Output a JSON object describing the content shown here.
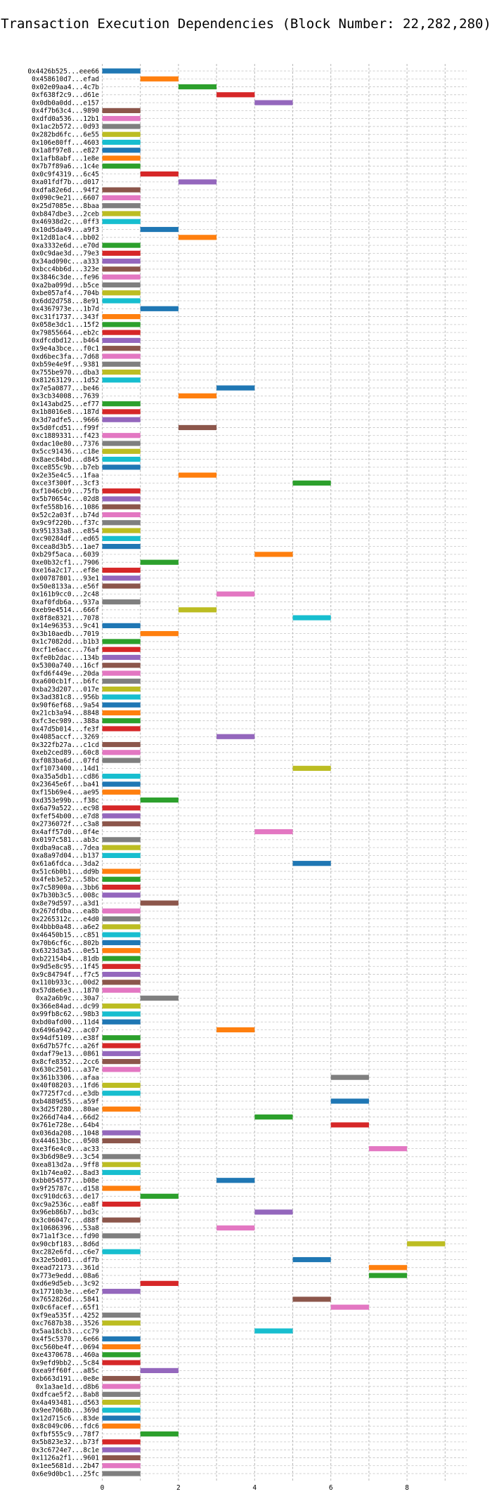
{
  "chart_data": {
    "type": "bar",
    "orientation": "horizontal-gantt",
    "title": "Transaction Execution Dependencies (Block Number: 22,282,280)",
    "xlabel": "",
    "ylabel": "",
    "xlim": [
      0,
      9.5
    ],
    "x_ticks": [
      0,
      2,
      4,
      6,
      8
    ],
    "grid": true,
    "palette": [
      "#1f77b4",
      "#ff7f0e",
      "#2ca02c",
      "#d62728",
      "#9467bd",
      "#8c564b",
      "#e377c2",
      "#7f7f7f",
      "#bcbd22",
      "#17becf"
    ],
    "transactions": [
      {
        "label": "0x4426b525...eee66",
        "start": 0,
        "end": 1
      },
      {
        "label": "0x458610d7...efad",
        "start": 1,
        "end": 2
      },
      {
        "label": "0x02e09aa4...4c7b",
        "start": 2,
        "end": 3
      },
      {
        "label": "0xf638f2c9...d61e",
        "start": 3,
        "end": 4
      },
      {
        "label": "0x0db0a0dd...e157",
        "start": 4,
        "end": 5
      },
      {
        "label": "0x4f7b63c4...9890",
        "start": 0,
        "end": 1
      },
      {
        "label": "0xdfd0a536...12b1",
        "start": 0,
        "end": 1
      },
      {
        "label": "0x1ac2b572...0d93",
        "start": 0,
        "end": 1
      },
      {
        "label": "0x282bd6fc...6e55",
        "start": 0,
        "end": 1
      },
      {
        "label": "0x106e80ff...4603",
        "start": 0,
        "end": 1
      },
      {
        "label": "0x1a8f97e8...e827",
        "start": 0,
        "end": 1
      },
      {
        "label": "0x1afb8abf...1e8e",
        "start": 0,
        "end": 1
      },
      {
        "label": "0x7b7f89a6...1c4e",
        "start": 0,
        "end": 1
      },
      {
        "label": "0x0c9f4319...6c45",
        "start": 1,
        "end": 2
      },
      {
        "label": "0xa01fdf7b...d017",
        "start": 2,
        "end": 3
      },
      {
        "label": "0xdfa82e6d...94f2",
        "start": 0,
        "end": 1
      },
      {
        "label": "0x090c9e21...6607",
        "start": 0,
        "end": 1
      },
      {
        "label": "0x25d7085e...8baa",
        "start": 0,
        "end": 1
      },
      {
        "label": "0xb847dbe3...2ceb",
        "start": 0,
        "end": 1
      },
      {
        "label": "0x46938d2c...0ff3",
        "start": 0,
        "end": 1
      },
      {
        "label": "0x10d5da49...a9f3",
        "start": 1,
        "end": 2
      },
      {
        "label": "0x12d81ac4...bb02",
        "start": 2,
        "end": 3
      },
      {
        "label": "0xa3332e6d...e70d",
        "start": 0,
        "end": 1
      },
      {
        "label": "0x0c9dae3d...79e3",
        "start": 0,
        "end": 1
      },
      {
        "label": "0x34ad090c...a333",
        "start": 0,
        "end": 1
      },
      {
        "label": "0xbcc4bb6d...323e",
        "start": 0,
        "end": 1
      },
      {
        "label": "0x3846c3de...fe96",
        "start": 0,
        "end": 1
      },
      {
        "label": "0xa2ba099d...b5ce",
        "start": 0,
        "end": 1
      },
      {
        "label": "0xbe057af4...704b",
        "start": 0,
        "end": 1
      },
      {
        "label": "0x6dd2d758...8e91",
        "start": 0,
        "end": 1
      },
      {
        "label": "0x4367973e...1b7d",
        "start": 1,
        "end": 2
      },
      {
        "label": "0xc31f1737...343f",
        "start": 0,
        "end": 1
      },
      {
        "label": "0x058e3dc1...15f2",
        "start": 0,
        "end": 1
      },
      {
        "label": "0x79855664...eb2c",
        "start": 0,
        "end": 1
      },
      {
        "label": "0xdfcdbd12...b464",
        "start": 0,
        "end": 1
      },
      {
        "label": "0x9e4a3bce...f0c1",
        "start": 0,
        "end": 1
      },
      {
        "label": "0xd6bec3fa...7d68",
        "start": 0,
        "end": 1
      },
      {
        "label": "0xb59e4e9f...9381",
        "start": 0,
        "end": 1
      },
      {
        "label": "0x755be970...dba3",
        "start": 0,
        "end": 1
      },
      {
        "label": "0x81263129...1d52",
        "start": 0,
        "end": 1
      },
      {
        "label": "0x7e5a0877...be46",
        "start": 3,
        "end": 4
      },
      {
        "label": "0x3cb34008...7639",
        "start": 2,
        "end": 3
      },
      {
        "label": "0x143abd25...ef77",
        "start": 0,
        "end": 1
      },
      {
        "label": "0x1b8016e8...187d",
        "start": 0,
        "end": 1
      },
      {
        "label": "0x3d7adfe5...9666",
        "start": 0,
        "end": 1
      },
      {
        "label": "0x5d0fcd51...f99f",
        "start": 2,
        "end": 3
      },
      {
        "label": "0xc1889331...f423",
        "start": 0,
        "end": 1
      },
      {
        "label": "0xdac10e80...7376",
        "start": 0,
        "end": 1
      },
      {
        "label": "0x5cc91436...c18e",
        "start": 0,
        "end": 1
      },
      {
        "label": "0x8aec84bd...d845",
        "start": 0,
        "end": 1
      },
      {
        "label": "0xce855c9b...b7eb",
        "start": 0,
        "end": 1
      },
      {
        "label": "0x2e35e4c5...1faa",
        "start": 2,
        "end": 3
      },
      {
        "label": "0xce3f300f...3cf3",
        "start": 5,
        "end": 6
      },
      {
        "label": "0xf1046cb9...75fb",
        "start": 0,
        "end": 1
      },
      {
        "label": "0x5b70654c...02d8",
        "start": 0,
        "end": 1
      },
      {
        "label": "0xfe558b16...1086",
        "start": 0,
        "end": 1
      },
      {
        "label": "0x52c2a03f...b74d",
        "start": 0,
        "end": 1
      },
      {
        "label": "0x9c9f220b...f37c",
        "start": 0,
        "end": 1
      },
      {
        "label": "0x951333a8...e854",
        "start": 0,
        "end": 1
      },
      {
        "label": "0xc90284df...ed65",
        "start": 0,
        "end": 1
      },
      {
        "label": "0xcea8d3b5...1ae7",
        "start": 0,
        "end": 1
      },
      {
        "label": "0xb29f5aca...6039",
        "start": 4,
        "end": 5
      },
      {
        "label": "0xe0b32cf1...7906",
        "start": 1,
        "end": 2
      },
      {
        "label": "0xe16a2c17...ef8e",
        "start": 0,
        "end": 1
      },
      {
        "label": "0x00787801...93e1",
        "start": 0,
        "end": 1
      },
      {
        "label": "0x50e8133a...e56f",
        "start": 0,
        "end": 1
      },
      {
        "label": "0x161b9cc0...2c48",
        "start": 3,
        "end": 4
      },
      {
        "label": "0xaf0fdb6a...937a",
        "start": 0,
        "end": 1
      },
      {
        "label": "0xeb9e4514...666f",
        "start": 2,
        "end": 3
      },
      {
        "label": "0x8f8e8321...7078",
        "start": 5,
        "end": 6
      },
      {
        "label": "0x14e96353...9c41",
        "start": 0,
        "end": 1
      },
      {
        "label": "0x3b10aedb...7019",
        "start": 1,
        "end": 2
      },
      {
        "label": "0x1c7082dd...b1b3",
        "start": 0,
        "end": 1
      },
      {
        "label": "0xcf1e6acc...76af",
        "start": 0,
        "end": 1
      },
      {
        "label": "0xfe0b2dac...134b",
        "start": 0,
        "end": 1
      },
      {
        "label": "0x5300a740...16cf",
        "start": 0,
        "end": 1
      },
      {
        "label": "0xfd6f449e...20da",
        "start": 0,
        "end": 1
      },
      {
        "label": "0xa600cb1f...b6fc",
        "start": 0,
        "end": 1
      },
      {
        "label": "0xba23d207...017e",
        "start": 0,
        "end": 1
      },
      {
        "label": "0x3ad381c8...956b",
        "start": 0,
        "end": 1
      },
      {
        "label": "0x90f6ef68...9a54",
        "start": 0,
        "end": 1
      },
      {
        "label": "0x21cb3a94...8848",
        "start": 0,
        "end": 1
      },
      {
        "label": "0xfc3ec989...388a",
        "start": 0,
        "end": 1
      },
      {
        "label": "0x47d5b014...fe3f",
        "start": 0,
        "end": 1
      },
      {
        "label": "0x4085accf...3269",
        "start": 3,
        "end": 4
      },
      {
        "label": "0x322fb27a...c1cd",
        "start": 0,
        "end": 1
      },
      {
        "label": "0xeb2ced89...60c8",
        "start": 0,
        "end": 1
      },
      {
        "label": "0xf083ba6d...07fd",
        "start": 0,
        "end": 1
      },
      {
        "label": "0xf1073400...14d1",
        "start": 5,
        "end": 6
      },
      {
        "label": "0xa35a5db1...cd86",
        "start": 0,
        "end": 1
      },
      {
        "label": "0x23645e6f...ba41",
        "start": 0,
        "end": 1
      },
      {
        "label": "0xf15b69e4...ae95",
        "start": 0,
        "end": 1
      },
      {
        "label": "0xd353e99b...f38c",
        "start": 1,
        "end": 2
      },
      {
        "label": "0x6a79a522...ec98",
        "start": 0,
        "end": 1
      },
      {
        "label": "0xfef54b00...e7d8",
        "start": 0,
        "end": 1
      },
      {
        "label": "0x2736072f...c3a8",
        "start": 0,
        "end": 1
      },
      {
        "label": "0x4aff57d0...0f4e",
        "start": 4,
        "end": 5
      },
      {
        "label": "0x0197c581...ab3c",
        "start": 0,
        "end": 1
      },
      {
        "label": "0xdba9aca8...7dea",
        "start": 0,
        "end": 1
      },
      {
        "label": "0xa8a97d04...b137",
        "start": 0,
        "end": 1
      },
      {
        "label": "0x61a6fdca...3da2",
        "start": 5,
        "end": 6
      },
      {
        "label": "0x51c6b0b1...dd9b",
        "start": 0,
        "end": 1
      },
      {
        "label": "0x4feb3e52...58bc",
        "start": 0,
        "end": 1
      },
      {
        "label": "0x7c58900a...3bb6",
        "start": 0,
        "end": 1
      },
      {
        "label": "0x7b30b3c5...008c",
        "start": 0,
        "end": 1
      },
      {
        "label": "0x8e79d597...a3d1",
        "start": 1,
        "end": 2
      },
      {
        "label": "0x267dfdba...ea8b",
        "start": 0,
        "end": 1
      },
      {
        "label": "0x2265312c...e4d0",
        "start": 0,
        "end": 1
      },
      {
        "label": "0x4bbb0a48...a6e2",
        "start": 0,
        "end": 1
      },
      {
        "label": "0x46450b15...c851",
        "start": 0,
        "end": 1
      },
      {
        "label": "0x70b6cf6c...802b",
        "start": 0,
        "end": 1
      },
      {
        "label": "0x6323d3a5...0e51",
        "start": 0,
        "end": 1
      },
      {
        "label": "0xb22154b4...81db",
        "start": 0,
        "end": 1
      },
      {
        "label": "0x9d5e8c95...1f45",
        "start": 0,
        "end": 1
      },
      {
        "label": "0x9c84794f...f7c5",
        "start": 0,
        "end": 1
      },
      {
        "label": "0x110b933c...00d2",
        "start": 0,
        "end": 1
      },
      {
        "label": "0x57d8e6e3...1870",
        "start": 0,
        "end": 1
      },
      {
        "label": "0xa2a6b9c...30a7",
        "start": 1,
        "end": 2
      },
      {
        "label": "0x366e84ad...dc99",
        "start": 0,
        "end": 1
      },
      {
        "label": "0x99fb8c62...98b3",
        "start": 0,
        "end": 1
      },
      {
        "label": "0xbd0afd00...11d4",
        "start": 0,
        "end": 1
      },
      {
        "label": "0x6496a942...ac07",
        "start": 3,
        "end": 4
      },
      {
        "label": "0x94df5109...e38f",
        "start": 0,
        "end": 1
      },
      {
        "label": "0x6d7b57fc...a26f",
        "start": 0,
        "end": 1
      },
      {
        "label": "0xdaf79e13...0861",
        "start": 0,
        "end": 1
      },
      {
        "label": "0x8cfe8352...2cc6",
        "start": 0,
        "end": 1
      },
      {
        "label": "0x630c2501...a37e",
        "start": 0,
        "end": 1
      },
      {
        "label": "0x361b3306...afaa",
        "start": 6,
        "end": 7
      },
      {
        "label": "0x40f08203...1fd6",
        "start": 0,
        "end": 1
      },
      {
        "label": "0x7725f7cd...e3db",
        "start": 0,
        "end": 1
      },
      {
        "label": "0xb4889d55...a59f",
        "start": 6,
        "end": 7
      },
      {
        "label": "0x3d25f280...80ae",
        "start": 0,
        "end": 1
      },
      {
        "label": "0x266d74a4...66d2",
        "start": 4,
        "end": 5
      },
      {
        "label": "0x761e728e...64b4",
        "start": 6,
        "end": 7
      },
      {
        "label": "0x036da208...1048",
        "start": 0,
        "end": 1
      },
      {
        "label": "0x444613bc...0508",
        "start": 0,
        "end": 1
      },
      {
        "label": "0xe3f6e4c0...ac33",
        "start": 7,
        "end": 8
      },
      {
        "label": "0x3b6d98e9...3c54",
        "start": 0,
        "end": 1
      },
      {
        "label": "0xea813d2a...9ff8",
        "start": 0,
        "end": 1
      },
      {
        "label": "0x1b74ea02...8ad3",
        "start": 0,
        "end": 1
      },
      {
        "label": "0xbb054577...b08e",
        "start": 3,
        "end": 4
      },
      {
        "label": "0x9f25787c...d158",
        "start": 0,
        "end": 1
      },
      {
        "label": "0xc910dc63...de17",
        "start": 1,
        "end": 2
      },
      {
        "label": "0xc9a2536c...ea8f",
        "start": 0,
        "end": 1
      },
      {
        "label": "0x96eb86b7...bd3c",
        "start": 4,
        "end": 5
      },
      {
        "label": "0x3c06047c...d88f",
        "start": 0,
        "end": 1
      },
      {
        "label": "0x10686396...53a8",
        "start": 3,
        "end": 4
      },
      {
        "label": "0x71a1f3ce...fd90",
        "start": 0,
        "end": 1
      },
      {
        "label": "0x90cbf183...8d6d",
        "start": 8,
        "end": 9
      },
      {
        "label": "0xc282e6fd...c6e7",
        "start": 0,
        "end": 1
      },
      {
        "label": "0x32e5bd01...df7b",
        "start": 5,
        "end": 6
      },
      {
        "label": "0xead72173...361d",
        "start": 7,
        "end": 8
      },
      {
        "label": "0x773e9edd...08a6",
        "start": 7,
        "end": 8
      },
      {
        "label": "0xd6e9d5eb...3c92",
        "start": 1,
        "end": 2
      },
      {
        "label": "0x17710b3e...e6e7",
        "start": 0,
        "end": 1
      },
      {
        "label": "0x7652826d...5841",
        "start": 5,
        "end": 6
      },
      {
        "label": "0x0c6facef...65f1",
        "start": 6,
        "end": 7
      },
      {
        "label": "0xf9ea535f...4252",
        "start": 0,
        "end": 1
      },
      {
        "label": "0xc7687b38...3526",
        "start": 0,
        "end": 1
      },
      {
        "label": "0x5aa18cb3...cc79",
        "start": 4,
        "end": 5
      },
      {
        "label": "0x4f5c5370...6e66",
        "start": 0,
        "end": 1
      },
      {
        "label": "0xc560be4f...0694",
        "start": 0,
        "end": 1
      },
      {
        "label": "0xe4370678...460a",
        "start": 0,
        "end": 1
      },
      {
        "label": "0x9efd9bb2...5c84",
        "start": 0,
        "end": 1
      },
      {
        "label": "0xea9ff60f...a85c",
        "start": 1,
        "end": 2
      },
      {
        "label": "0xb663d191...0e8e",
        "start": 0,
        "end": 1
      },
      {
        "label": "0x1a3ae1d...d8b6",
        "start": 0,
        "end": 1
      },
      {
        "label": "0xdfcae5f2...8ab8",
        "start": 0,
        "end": 1
      },
      {
        "label": "0x4a493481...d563",
        "start": 0,
        "end": 1
      },
      {
        "label": "0x9ee7068b...369d",
        "start": 0,
        "end": 1
      },
      {
        "label": "0x12d715c6...83de",
        "start": 0,
        "end": 1
      },
      {
        "label": "0x8c049c06...fdc6",
        "start": 0,
        "end": 1
      },
      {
        "label": "0xfbf555c9...78f7",
        "start": 1,
        "end": 2
      },
      {
        "label": "0x5b823e32...b73f",
        "start": 0,
        "end": 1
      },
      {
        "label": "0x3c6724e7...8c1e",
        "start": 0,
        "end": 1
      },
      {
        "label": "0x1126a2f1...9601",
        "start": 0,
        "end": 1
      },
      {
        "label": "0x1ee5681d...2b47",
        "start": 0,
        "end": 1
      },
      {
        "label": "0x6e9d0bc1...25fc",
        "start": 0,
        "end": 1
      }
    ]
  }
}
